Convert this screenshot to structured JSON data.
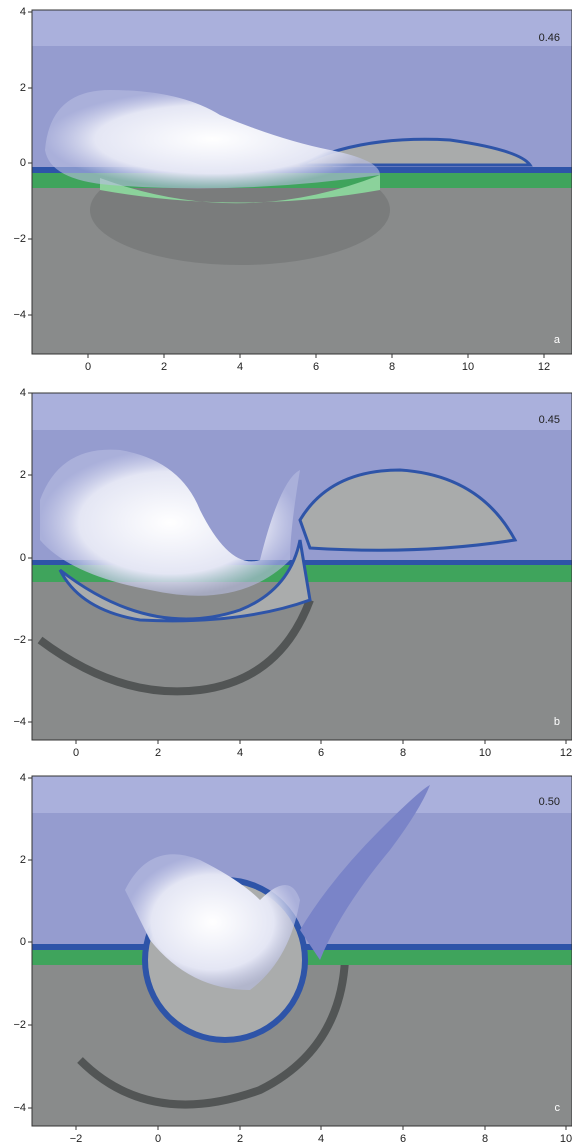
{
  "panels": [
    {
      "time": "0.46",
      "letter": "a",
      "xticks": [
        "0",
        "2",
        "4",
        "6",
        "8",
        "10",
        "12"
      ],
      "yticks": [
        "4",
        "2",
        "0",
        "−2",
        "−4"
      ]
    },
    {
      "time": "0.45",
      "letter": "b",
      "xticks": [
        "0",
        "2",
        "4",
        "6",
        "8",
        "10",
        "12"
      ],
      "yticks": [
        "4",
        "2",
        "0",
        "−2",
        "−4"
      ]
    },
    {
      "time": "0.50",
      "letter": "c",
      "xticks": [
        "−2",
        "0",
        "2",
        "4",
        "6",
        "8",
        "10"
      ],
      "yticks": [
        "4",
        "2",
        "0",
        "−2",
        "−4"
      ]
    }
  ]
}
